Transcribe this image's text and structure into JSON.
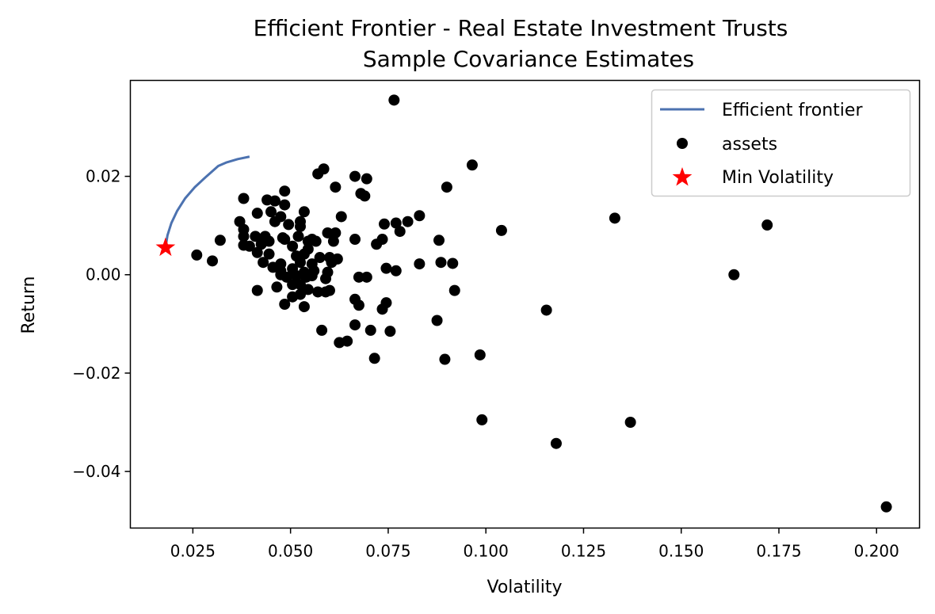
{
  "chart_data": {
    "type": "scatter",
    "title": "Efficient Frontier - Real Estate Investment Trusts",
    "subtitle": "Sample Covariance Estimates",
    "xlabel": "Volatility",
    "ylabel": "Return",
    "xlim": [
      0.009,
      0.211
    ],
    "ylim": [
      -0.0515,
      0.0395
    ],
    "xticks": [
      0.025,
      0.05,
      0.075,
      0.1,
      0.125,
      0.15,
      0.175,
      0.2
    ],
    "xtick_labels": [
      "0.025",
      "0.050",
      "0.075",
      "0.100",
      "0.125",
      "0.150",
      "0.175",
      "0.200"
    ],
    "yticks": [
      0.02,
      0.0,
      -0.02,
      -0.04
    ],
    "ytick_labels": [
      "0.02",
      "0.00",
      "−0.02",
      "−0.04"
    ],
    "grid": false,
    "legend_position": "top-right",
    "colors": {
      "frontier": "#4c72b0",
      "assets": "#000000",
      "min_vol": "#ff0000"
    },
    "series": [
      {
        "name": "Efficient frontier",
        "kind": "line",
        "points": [
          [
            0.018,
            0.0055
          ],
          [
            0.0185,
            0.008
          ],
          [
            0.0195,
            0.0105
          ],
          [
            0.021,
            0.013
          ],
          [
            0.023,
            0.0155
          ],
          [
            0.0255,
            0.0178
          ],
          [
            0.0285,
            0.02
          ],
          [
            0.0315,
            0.0221
          ],
          [
            0.0335,
            0.0228
          ],
          [
            0.0365,
            0.0235
          ],
          [
            0.0395,
            0.024
          ]
        ]
      },
      {
        "name": "assets",
        "kind": "scatter",
        "points": [
          [
            0.0765,
            0.0355
          ],
          [
            0.0965,
            0.0223
          ],
          [
            0.0585,
            0.0215
          ],
          [
            0.057,
            0.0205
          ],
          [
            0.0665,
            0.02
          ],
          [
            0.0695,
            0.0195
          ],
          [
            0.0485,
            0.017
          ],
          [
            0.0615,
            0.0178
          ],
          [
            0.09,
            0.0178
          ],
          [
            0.068,
            0.0165
          ],
          [
            0.069,
            0.016
          ],
          [
            0.038,
            0.0155
          ],
          [
            0.044,
            0.0152
          ],
          [
            0.046,
            0.015
          ],
          [
            0.0485,
            0.0142
          ],
          [
            0.045,
            0.0128
          ],
          [
            0.0415,
            0.0125
          ],
          [
            0.0535,
            0.0128
          ],
          [
            0.0475,
            0.0118
          ],
          [
            0.063,
            0.0118
          ],
          [
            0.083,
            0.012
          ],
          [
            0.133,
            0.0115
          ],
          [
            0.037,
            0.0108
          ],
          [
            0.046,
            0.0108
          ],
          [
            0.0495,
            0.0102
          ],
          [
            0.0525,
            0.0108
          ],
          [
            0.074,
            0.0103
          ],
          [
            0.077,
            0.0105
          ],
          [
            0.08,
            0.0108
          ],
          [
            0.172,
            0.0101
          ],
          [
            0.038,
            0.0092
          ],
          [
            0.0525,
            0.0098
          ],
          [
            0.0595,
            0.0085
          ],
          [
            0.0615,
            0.0085
          ],
          [
            0.078,
            0.0088
          ],
          [
            0.104,
            0.009
          ],
          [
            0.038,
            0.0078
          ],
          [
            0.041,
            0.0078
          ],
          [
            0.0435,
            0.0078
          ],
          [
            0.048,
            0.0075
          ],
          [
            0.052,
            0.0078
          ],
          [
            0.0555,
            0.0072
          ],
          [
            0.0665,
            0.0072
          ],
          [
            0.0735,
            0.0072
          ],
          [
            0.032,
            0.007
          ],
          [
            0.0445,
            0.0068
          ],
          [
            0.0485,
            0.0072
          ],
          [
            0.0545,
            0.0068
          ],
          [
            0.0565,
            0.0068
          ],
          [
            0.061,
            0.0068
          ],
          [
            0.088,
            0.007
          ],
          [
            0.038,
            0.006
          ],
          [
            0.0395,
            0.0058
          ],
          [
            0.0425,
            0.0062
          ],
          [
            0.0505,
            0.0058
          ],
          [
            0.0545,
            0.0052
          ],
          [
            0.072,
            0.0062
          ],
          [
            0.026,
            0.004
          ],
          [
            0.0415,
            0.0045
          ],
          [
            0.0445,
            0.0042
          ],
          [
            0.0515,
            0.0038
          ],
          [
            0.0535,
            0.0042
          ],
          [
            0.0575,
            0.0035
          ],
          [
            0.06,
            0.0035
          ],
          [
            0.062,
            0.0032
          ],
          [
            0.03,
            0.0028
          ],
          [
            0.043,
            0.0025
          ],
          [
            0.0475,
            0.0022
          ],
          [
            0.0525,
            0.0025
          ],
          [
            0.0555,
            0.0022
          ],
          [
            0.0605,
            0.0025
          ],
          [
            0.083,
            0.0022
          ],
          [
            0.0885,
            0.0025
          ],
          [
            0.0915,
            0.0023
          ],
          [
            0.0455,
            0.0015
          ],
          [
            0.0475,
            0.0008
          ],
          [
            0.0505,
            0.0012
          ],
          [
            0.0535,
            0.0005
          ],
          [
            0.056,
            0.0008
          ],
          [
            0.0595,
            0.0005
          ],
          [
            0.0745,
            0.0013
          ],
          [
            0.077,
            0.0008
          ],
          [
            0.0475,
            0.0
          ],
          [
            0.049,
            -0.0005
          ],
          [
            0.0515,
            -0.0002
          ],
          [
            0.054,
            -0.0005
          ],
          [
            0.0555,
            -0.0002
          ],
          [
            0.059,
            -0.0008
          ],
          [
            0.0675,
            -0.0005
          ],
          [
            0.0695,
            -0.0005
          ],
          [
            0.1635,
            0.0
          ],
          [
            0.0465,
            -0.0025
          ],
          [
            0.0505,
            -0.002
          ],
          [
            0.0525,
            -0.002
          ],
          [
            0.0545,
            -0.003
          ],
          [
            0.057,
            -0.0035
          ],
          [
            0.059,
            -0.0035
          ],
          [
            0.06,
            -0.0032
          ],
          [
            0.092,
            -0.0032
          ],
          [
            0.0415,
            -0.0032
          ],
          [
            0.0505,
            -0.0045
          ],
          [
            0.0525,
            -0.004
          ],
          [
            0.0535,
            -0.0065
          ],
          [
            0.0485,
            -0.006
          ],
          [
            0.0665,
            -0.005
          ],
          [
            0.0675,
            -0.0062
          ],
          [
            0.0745,
            -0.0057
          ],
          [
            0.0735,
            -0.007
          ],
          [
            0.1155,
            -0.0072
          ],
          [
            0.0875,
            -0.0093
          ],
          [
            0.058,
            -0.0113
          ],
          [
            0.0665,
            -0.0102
          ],
          [
            0.0705,
            -0.0113
          ],
          [
            0.0755,
            -0.0115
          ],
          [
            0.0625,
            -0.0138
          ],
          [
            0.0645,
            -0.0135
          ],
          [
            0.0715,
            -0.017
          ],
          [
            0.0895,
            -0.0172
          ],
          [
            0.0985,
            -0.0163
          ],
          [
            0.099,
            -0.0295
          ],
          [
            0.137,
            -0.03
          ],
          [
            0.118,
            -0.0343
          ],
          [
            0.2025,
            -0.0472
          ]
        ]
      },
      {
        "name": "Min Volatility",
        "kind": "marker",
        "points": [
          [
            0.018,
            0.0055
          ]
        ]
      }
    ]
  }
}
